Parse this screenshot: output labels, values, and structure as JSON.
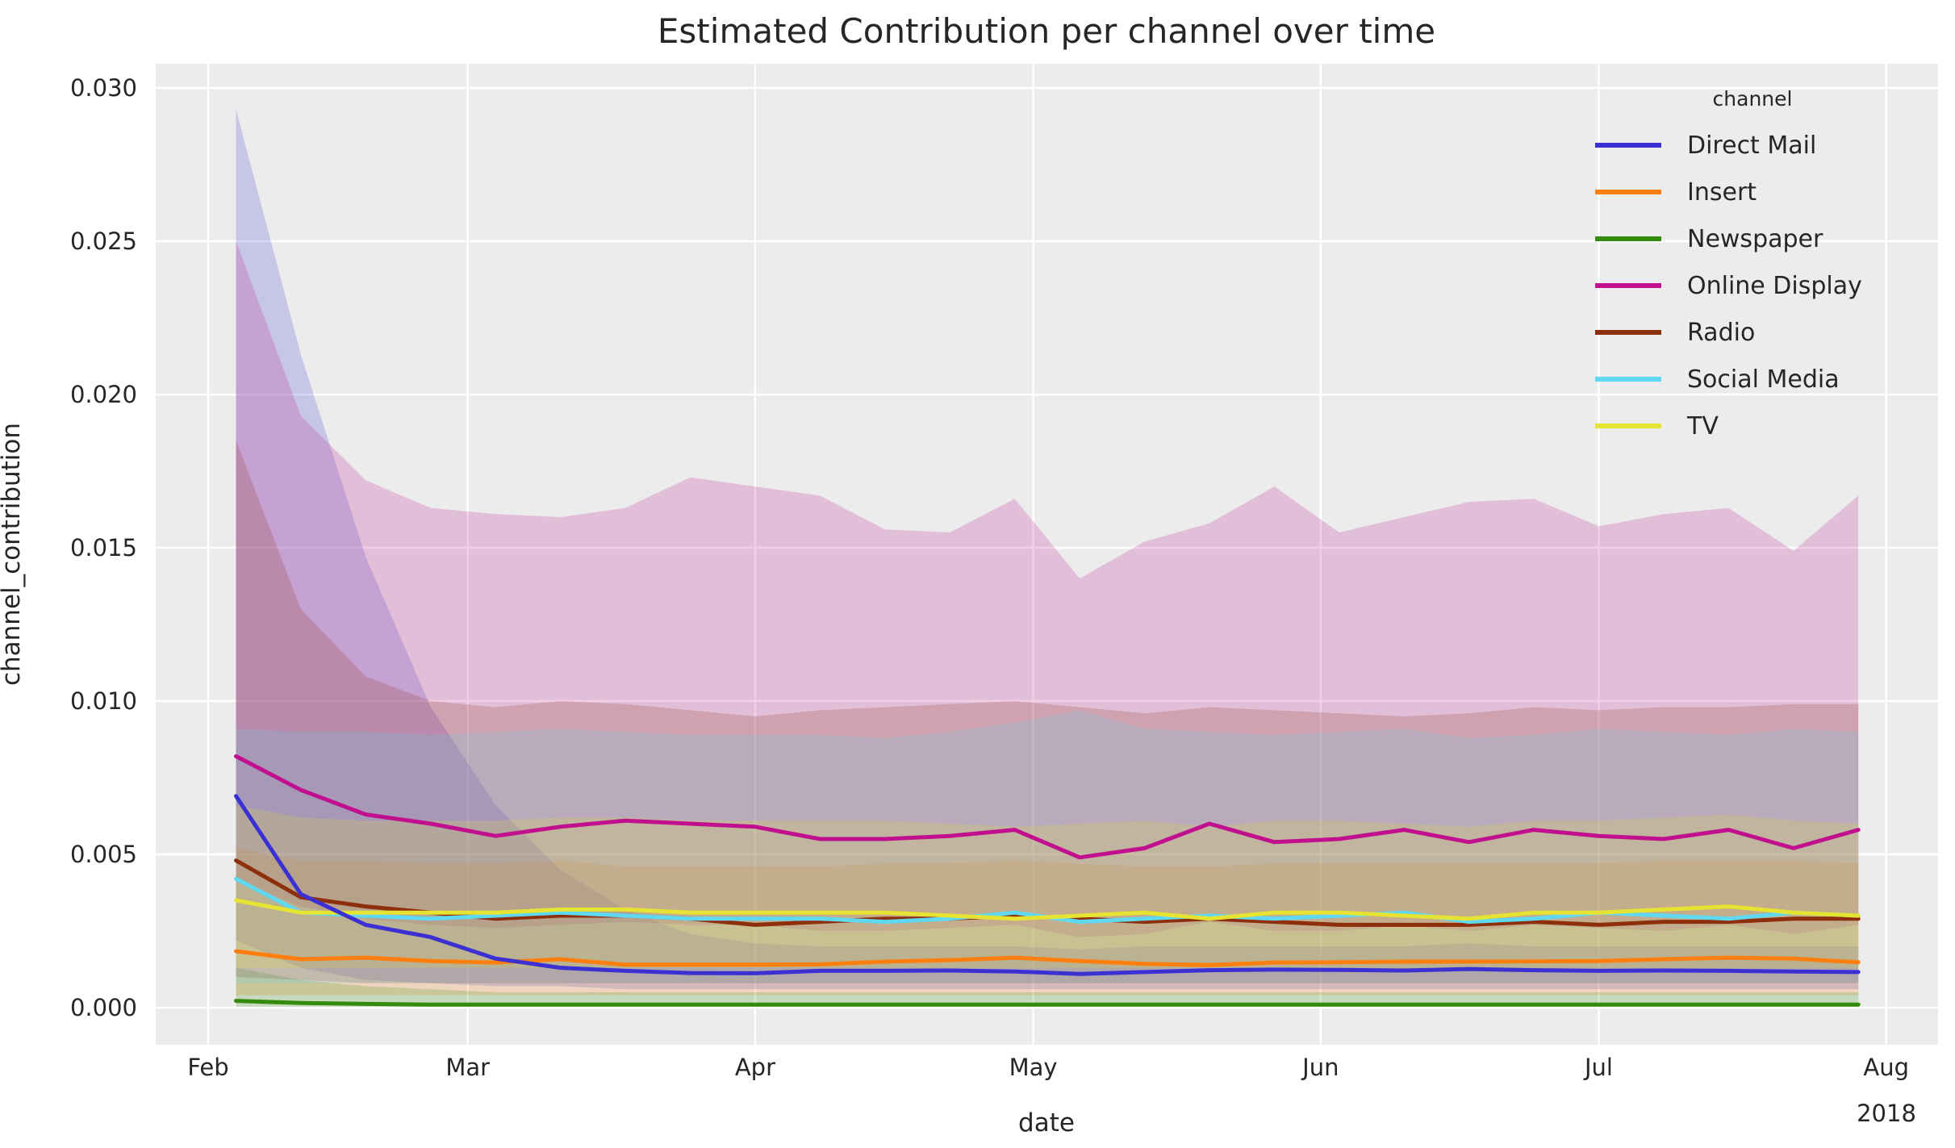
{
  "chart_data": {
    "type": "line",
    "title": "Estimated Contribution per channel over time",
    "xlabel": "date",
    "ylabel": "channel_contribution",
    "year_label": "2018",
    "legend_title": "channel",
    "background": {
      "figure": "#ffffff",
      "axes": "#ececec",
      "grid": "#ffffff"
    },
    "ylim": [
      0.0,
      0.03
    ],
    "yticks": [
      {
        "label": "0.000",
        "value": 0.0
      },
      {
        "label": "0.005",
        "value": 0.005
      },
      {
        "label": "0.010",
        "value": 0.01
      },
      {
        "label": "0.015",
        "value": 0.015
      },
      {
        "label": "0.020",
        "value": 0.02
      },
      {
        "label": "0.025",
        "value": 0.025
      },
      {
        "label": "0.030",
        "value": 0.03
      }
    ],
    "xticks": [
      {
        "label": "Feb",
        "day": 0
      },
      {
        "label": "Mar",
        "day": 28
      },
      {
        "label": "Apr",
        "day": 59
      },
      {
        "label": "May",
        "day": 89
      },
      {
        "label": "Jun",
        "day": 120
      },
      {
        "label": "Jul",
        "day": 150
      },
      {
        "label": "Aug",
        "day": 181
      }
    ],
    "x_sampling": {
      "first_point_day": 3,
      "step_days": 7,
      "n_points": 26
    },
    "band_alpha": 0.2,
    "series": [
      {
        "name": "Direct Mail",
        "color": "#3b31d3",
        "values": [
          0.0069,
          0.0037,
          0.0027,
          0.0023,
          0.0016,
          0.0013,
          0.0012,
          0.00113,
          0.00112,
          0.0012,
          0.0012,
          0.00121,
          0.00118,
          0.0011,
          0.00116,
          0.00122,
          0.00124,
          0.00123,
          0.00121,
          0.00126,
          0.00122,
          0.0012,
          0.00121,
          0.0012,
          0.00118,
          0.00116
        ],
        "ci_upper": [
          0.0293,
          0.0213,
          0.0147,
          0.0098,
          0.0066,
          0.0045,
          0.0032,
          0.0024,
          0.0021,
          0.002,
          0.002,
          0.002,
          0.002,
          0.0019,
          0.002,
          0.002,
          0.002,
          0.002,
          0.002,
          0.0021,
          0.002,
          0.002,
          0.002,
          0.002,
          0.002,
          0.002
        ],
        "ci_lower": [
          0.0022,
          0.0013,
          0.0009,
          0.0008,
          0.0007,
          0.0007,
          0.0006,
          0.0006,
          0.0006,
          0.0006,
          0.0006,
          0.0006,
          0.0006,
          0.0006,
          0.0006,
          0.0006,
          0.0006,
          0.0006,
          0.0006,
          0.0006,
          0.0006,
          0.0006,
          0.0006,
          0.0006,
          0.0006,
          0.0006
        ]
      },
      {
        "name": "Insert",
        "color": "#ff7f0e",
        "values": [
          0.00184,
          0.00158,
          0.00163,
          0.00152,
          0.00147,
          0.00158,
          0.0014,
          0.0014,
          0.0014,
          0.00141,
          0.0015,
          0.00155,
          0.00163,
          0.00152,
          0.00143,
          0.00139,
          0.00147,
          0.00148,
          0.0015,
          0.0015,
          0.00151,
          0.00152,
          0.00158,
          0.00163,
          0.0016,
          0.00148
        ],
        "ci_upper": [
          0.0052,
          0.0048,
          0.0048,
          0.0047,
          0.0047,
          0.0048,
          0.0046,
          0.0046,
          0.0046,
          0.0046,
          0.0047,
          0.0047,
          0.0048,
          0.0047,
          0.0046,
          0.0046,
          0.0047,
          0.0047,
          0.0047,
          0.0047,
          0.0047,
          0.0047,
          0.0048,
          0.0048,
          0.0048,
          0.0047
        ],
        "ci_lower": [
          0.0004,
          0.0004,
          0.0004,
          0.0004,
          0.0004,
          0.0004,
          0.0004,
          0.0004,
          0.0004,
          0.0004,
          0.0004,
          0.0004,
          0.0004,
          0.0004,
          0.0004,
          0.0004,
          0.0004,
          0.0004,
          0.0004,
          0.0004,
          0.0004,
          0.0004,
          0.0004,
          0.0004,
          0.0004,
          0.0004
        ]
      },
      {
        "name": "Newspaper",
        "color": "#338a0b",
        "values": [
          0.00022,
          0.00015,
          0.00012,
          0.0001,
          0.0001,
          0.0001,
          0.0001,
          0.0001,
          0.0001,
          0.0001,
          0.0001,
          0.0001,
          0.0001,
          0.0001,
          0.0001,
          0.0001,
          0.0001,
          0.0001,
          0.0001,
          0.0001,
          0.0001,
          0.0001,
          0.0001,
          0.0001,
          0.0001,
          0.0001
        ],
        "ci_upper": [
          0.0013,
          0.0009,
          0.0007,
          0.0006,
          0.0005,
          0.0005,
          0.0005,
          0.0005,
          0.0005,
          0.0005,
          0.0005,
          0.0005,
          0.0005,
          0.0005,
          0.0005,
          0.0005,
          0.0005,
          0.0005,
          0.0005,
          0.0005,
          0.0005,
          0.0005,
          0.0005,
          0.0005,
          0.0005,
          0.0005
        ],
        "ci_lower": [
          3e-05,
          2e-05,
          2e-05,
          2e-05,
          2e-05,
          2e-05,
          2e-05,
          2e-05,
          2e-05,
          2e-05,
          2e-05,
          2e-05,
          2e-05,
          2e-05,
          2e-05,
          2e-05,
          2e-05,
          2e-05,
          2e-05,
          2e-05,
          2e-05,
          2e-05,
          2e-05,
          2e-05,
          2e-05,
          2e-05
        ]
      },
      {
        "name": "Online Display",
        "color": "#c0108e",
        "values": [
          0.0082,
          0.0071,
          0.0063,
          0.006,
          0.0056,
          0.0059,
          0.0061,
          0.006,
          0.0059,
          0.0055,
          0.0055,
          0.0056,
          0.0058,
          0.0049,
          0.0052,
          0.006,
          0.0054,
          0.0055,
          0.0058,
          0.0054,
          0.0058,
          0.0056,
          0.0055,
          0.0058,
          0.0052,
          0.0058
        ],
        "ci_upper": [
          0.025,
          0.0193,
          0.0172,
          0.0163,
          0.0161,
          0.016,
          0.0163,
          0.0173,
          0.017,
          0.0167,
          0.0156,
          0.0155,
          0.0166,
          0.014,
          0.0152,
          0.0158,
          0.017,
          0.0155,
          0.016,
          0.0165,
          0.0166,
          0.0157,
          0.0161,
          0.0163,
          0.0149,
          0.0167
        ],
        "ci_lower": [
          0.0041,
          0.0033,
          0.0029,
          0.0027,
          0.0026,
          0.0027,
          0.0028,
          0.0027,
          0.0027,
          0.0025,
          0.0025,
          0.0026,
          0.0027,
          0.0023,
          0.0024,
          0.0028,
          0.0025,
          0.0025,
          0.0027,
          0.0025,
          0.0027,
          0.0026,
          0.0025,
          0.0027,
          0.0024,
          0.0027
        ]
      },
      {
        "name": "Radio",
        "color": "#8e2f0c",
        "values": [
          0.0048,
          0.0036,
          0.0033,
          0.0031,
          0.0029,
          0.003,
          0.003,
          0.0029,
          0.0027,
          0.0028,
          0.0029,
          0.0029,
          0.003,
          0.0029,
          0.0028,
          0.0029,
          0.0028,
          0.0027,
          0.0027,
          0.0027,
          0.0028,
          0.0027,
          0.0028,
          0.0028,
          0.0029,
          0.0029
        ],
        "ci_upper": [
          0.0185,
          0.013,
          0.0108,
          0.01,
          0.0098,
          0.01,
          0.0099,
          0.0097,
          0.0095,
          0.0097,
          0.0098,
          0.0099,
          0.01,
          0.0098,
          0.0096,
          0.0098,
          0.0097,
          0.0096,
          0.0095,
          0.0096,
          0.0098,
          0.0097,
          0.0098,
          0.0098,
          0.0099,
          0.0099
        ],
        "ci_lower": [
          0.001,
          0.0009,
          0.0008,
          0.0008,
          0.0008,
          0.0008,
          0.0008,
          0.0008,
          0.0008,
          0.0008,
          0.0008,
          0.0008,
          0.0008,
          0.0008,
          0.0008,
          0.0008,
          0.0008,
          0.0008,
          0.0008,
          0.0008,
          0.0008,
          0.0008,
          0.0008,
          0.0008,
          0.0008,
          0.0008
        ]
      },
      {
        "name": "Social Media",
        "color": "#5fd9f2",
        "values": [
          0.0042,
          0.0031,
          0.003,
          0.0029,
          0.003,
          0.0031,
          0.003,
          0.0029,
          0.0029,
          0.0029,
          0.0028,
          0.0029,
          0.0031,
          0.0028,
          0.0029,
          0.003,
          0.0029,
          0.003,
          0.0031,
          0.0028,
          0.0029,
          0.0031,
          0.003,
          0.0029,
          0.0031,
          0.003
        ],
        "ci_upper": [
          0.0091,
          0.009,
          0.009,
          0.0089,
          0.009,
          0.0091,
          0.009,
          0.0089,
          0.0089,
          0.0089,
          0.0088,
          0.009,
          0.0093,
          0.0097,
          0.0091,
          0.009,
          0.0089,
          0.009,
          0.0091,
          0.0088,
          0.0089,
          0.0091,
          0.009,
          0.0089,
          0.0091,
          0.009
        ],
        "ci_lower": [
          0.0008,
          0.0008,
          0.0008,
          0.0008,
          0.0008,
          0.0008,
          0.0008,
          0.0008,
          0.0008,
          0.0008,
          0.0008,
          0.0008,
          0.0008,
          0.0008,
          0.0008,
          0.0008,
          0.0008,
          0.0008,
          0.0008,
          0.0008,
          0.0008,
          0.0008,
          0.0008,
          0.0008,
          0.0008,
          0.0008
        ]
      },
      {
        "name": "TV",
        "color": "#e6e332",
        "values": [
          0.0035,
          0.0031,
          0.0031,
          0.0031,
          0.0031,
          0.0032,
          0.0032,
          0.0031,
          0.0031,
          0.0031,
          0.0031,
          0.003,
          0.0029,
          0.003,
          0.0031,
          0.0029,
          0.0031,
          0.0031,
          0.003,
          0.0029,
          0.0031,
          0.0031,
          0.0032,
          0.0033,
          0.0031,
          0.003
        ],
        "ci_upper": [
          0.0066,
          0.0062,
          0.0061,
          0.0061,
          0.0061,
          0.0062,
          0.0062,
          0.0061,
          0.0061,
          0.0061,
          0.0061,
          0.006,
          0.0059,
          0.006,
          0.0061,
          0.0059,
          0.0061,
          0.0061,
          0.006,
          0.0059,
          0.0061,
          0.0061,
          0.0062,
          0.0063,
          0.0061,
          0.006
        ],
        "ci_lower": [
          0.0013,
          0.0013,
          0.0013,
          0.0013,
          0.0013,
          0.0013,
          0.0013,
          0.0013,
          0.0013,
          0.0013,
          0.0013,
          0.0013,
          0.0013,
          0.0013,
          0.0013,
          0.0013,
          0.0013,
          0.0013,
          0.0013,
          0.0013,
          0.0013,
          0.0013,
          0.0013,
          0.0013,
          0.0013,
          0.0013
        ]
      }
    ],
    "line_draw_order": [
      "Newspaper",
      "Insert",
      "Radio",
      "Social Media",
      "TV",
      "Direct Mail",
      "Online Display"
    ]
  }
}
